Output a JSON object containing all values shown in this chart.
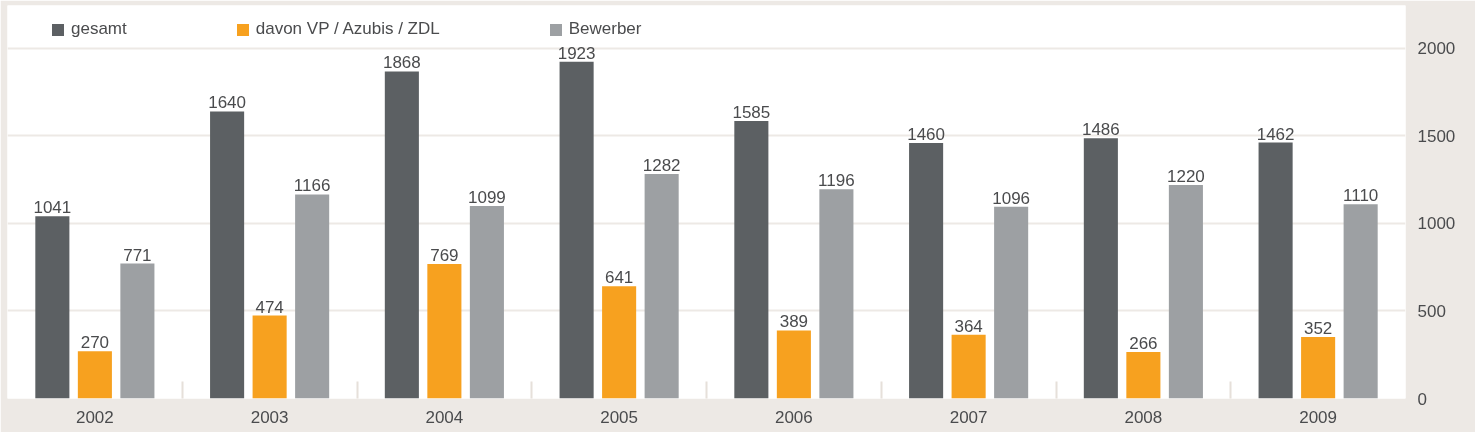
{
  "chart_data": {
    "type": "bar",
    "categories": [
      "2002",
      "2003",
      "2004",
      "2005",
      "2006",
      "2007",
      "2008",
      "2009"
    ],
    "series": [
      {
        "name": "gesamt",
        "color": "#5c6063",
        "values": [
          1041,
          1640,
          1868,
          1923,
          1585,
          1460,
          1486,
          1462
        ]
      },
      {
        "name": "davon VP / Azubis / ZDL",
        "color": "#f7a11f",
        "values": [
          270,
          474,
          769,
          641,
          389,
          364,
          266,
          352
        ]
      },
      {
        "name": "Bewerber",
        "color": "#9da0a3",
        "values": [
          771,
          1166,
          1099,
          1282,
          1196,
          1096,
          1220,
          1110
        ]
      }
    ],
    "ylim": [
      0,
      2245
    ],
    "yticks": [
      0,
      500,
      1000,
      1500,
      2000
    ],
    "grid": "y",
    "legend": "top left",
    "data_labels": true
  }
}
